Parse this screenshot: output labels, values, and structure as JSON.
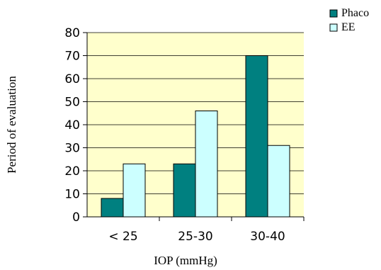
{
  "chart_data": {
    "type": "bar",
    "categories": [
      "< 25",
      "25-30",
      "30-40"
    ],
    "series": [
      {
        "name": "Phaco",
        "values": [
          8,
          23,
          70
        ],
        "color": "#008080"
      },
      {
        "name": "EE",
        "values": [
          23,
          46,
          31
        ],
        "color": "#ccffff"
      }
    ],
    "xlabel": "IOP (mmHg)",
    "ylabel": "Period of evaluation",
    "ylim": [
      0,
      80
    ],
    "yticks": [
      0,
      10,
      20,
      30,
      40,
      50,
      60,
      70,
      80
    ],
    "grid": true,
    "legend": "top-right",
    "plot_background": "#ffffcc"
  }
}
